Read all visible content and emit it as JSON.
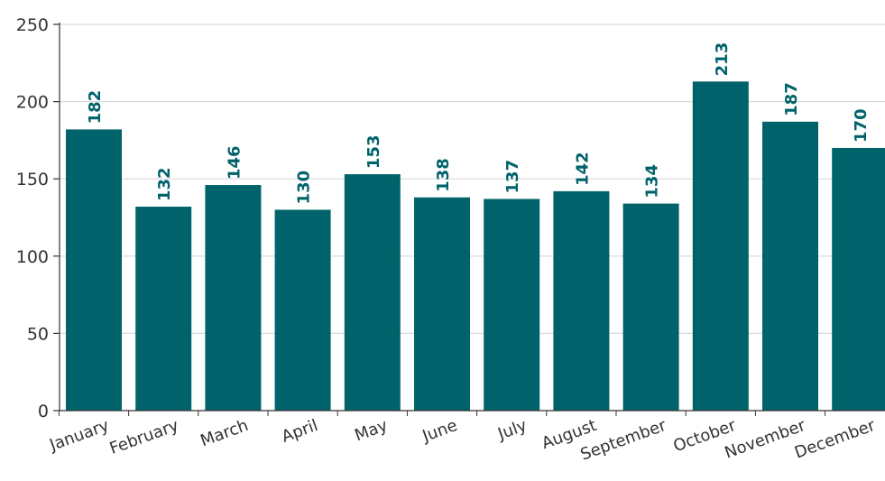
{
  "chart_data": {
    "type": "bar",
    "title": "",
    "xlabel": "",
    "ylabel": "",
    "categories": [
      "January",
      "February",
      "March",
      "April",
      "May",
      "June",
      "July",
      "August",
      "September",
      "October",
      "November",
      "December"
    ],
    "values": [
      182,
      132,
      146,
      130,
      153,
      138,
      137,
      142,
      134,
      213,
      187,
      170
    ],
    "ylim": [
      0,
      250
    ],
    "yticks": [
      "0",
      "50",
      "100",
      "150",
      "200",
      "250"
    ],
    "grid": true,
    "legend": "none",
    "bar_color": "#00636B",
    "label_color": "#00636B",
    "grid_color": "#d9d9d9",
    "axis_color": "#333333"
  }
}
